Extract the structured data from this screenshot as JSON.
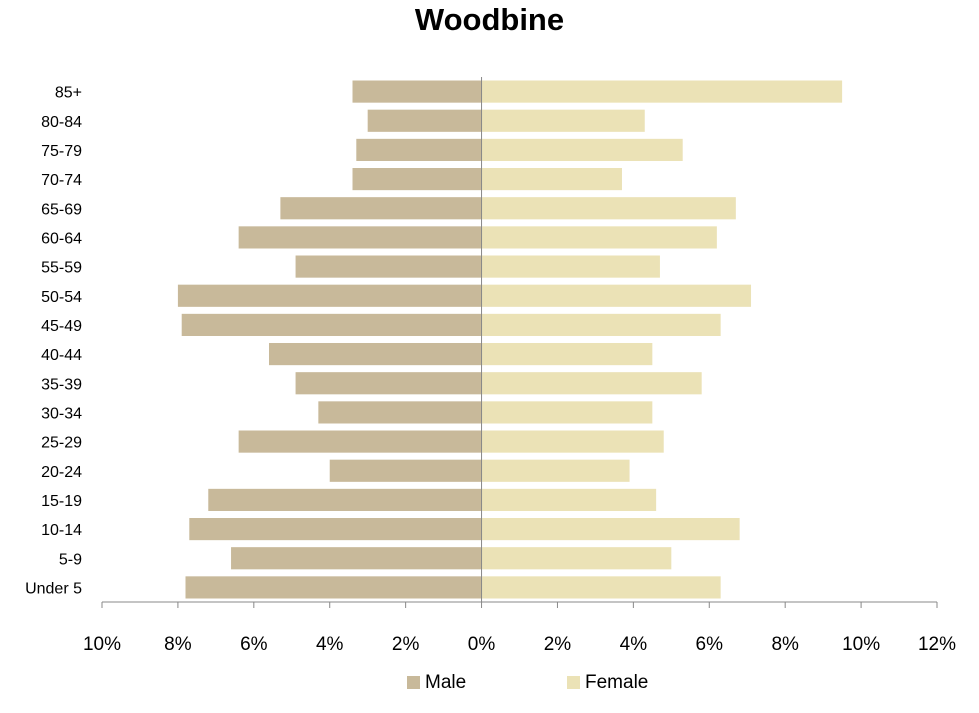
{
  "chart_data": {
    "type": "bar",
    "orientation": "horizontal",
    "title": "Woodbine",
    "categories": [
      "Under 5",
      "5-9",
      "10-14",
      "15-19",
      "20-24",
      "25-29",
      "30-34",
      "35-39",
      "40-44",
      "45-49",
      "50-54",
      "55-59",
      "60-64",
      "65-69",
      "70-74",
      "75-79",
      "80-84",
      "85+"
    ],
    "series": [
      {
        "name": "Male",
        "color": "#c8b99a",
        "values": [
          7.8,
          6.6,
          7.7,
          7.2,
          4.0,
          6.4,
          4.3,
          4.9,
          5.6,
          7.9,
          8.0,
          4.9,
          6.4,
          5.3,
          3.4,
          3.3,
          3.0,
          3.4
        ]
      },
      {
        "name": "Female",
        "color": "#ebe2b6",
        "values": [
          6.3,
          5.0,
          6.8,
          4.6,
          3.9,
          4.8,
          4.5,
          5.8,
          4.5,
          6.3,
          7.1,
          4.7,
          6.2,
          6.7,
          3.7,
          5.3,
          4.3,
          9.5
        ]
      }
    ],
    "xlim": [
      -10,
      12
    ],
    "xticks": [
      -10,
      -8,
      -6,
      -4,
      -2,
      0,
      2,
      4,
      6,
      8,
      10,
      12
    ],
    "xtick_labels": [
      "10%",
      "8%",
      "6%",
      "4%",
      "2%",
      "0%",
      "2%",
      "4%",
      "6%",
      "8%",
      "10%",
      "12%"
    ],
    "xlabel": "",
    "ylabel": "",
    "grid": false,
    "legend": "bottom"
  }
}
